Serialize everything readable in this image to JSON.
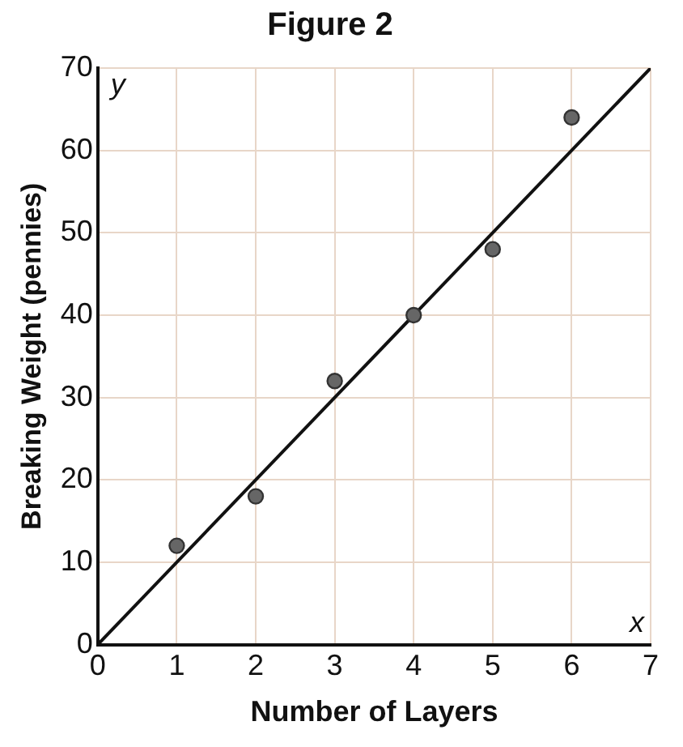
{
  "chart_data": {
    "type": "scatter",
    "title": "Figure 2",
    "xlabel": "Number of Layers",
    "ylabel": "Breaking Weight (pennies)",
    "annotations": [
      "y",
      "x"
    ],
    "xlim": [
      0,
      7
    ],
    "xticks": [
      0,
      1,
      2,
      3,
      4,
      5,
      6,
      7
    ],
    "ylim": [
      0,
      70
    ],
    "yticks": [
      0,
      10,
      20,
      30,
      40,
      50,
      60,
      70
    ],
    "grid": true,
    "legend": false,
    "marker": "circle",
    "series": [
      {
        "type": "scatter",
        "color": "#666666",
        "x": [
          1,
          2,
          3,
          4,
          5,
          6
        ],
        "values": [
          12,
          18,
          32,
          40,
          48,
          64
        ]
      },
      {
        "type": "line",
        "color": "#111111",
        "x": [
          0,
          7
        ],
        "values": [
          0,
          70
        ],
        "marker": "none",
        "line_style": "solid"
      }
    ]
  }
}
